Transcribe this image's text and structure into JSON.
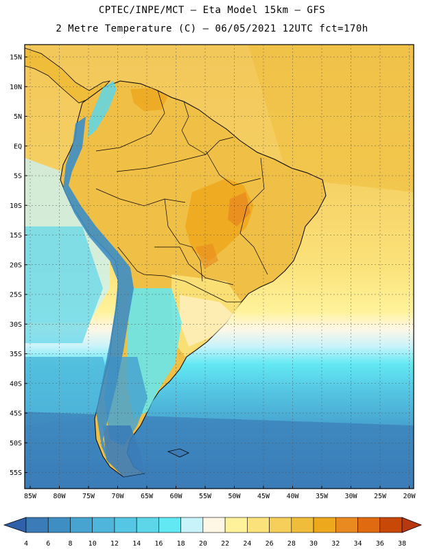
{
  "header": {
    "line1": "CPTEC/INPE/MCT –  Eta Model 15km – GFS",
    "line2": "2 Metre Temperature (C) – 06/05/2021 12UTC fct=170h"
  },
  "map": {
    "lat_labels": [
      "15N",
      "10N",
      "5N",
      "EQ",
      "5S",
      "10S",
      "15S",
      "20S",
      "25S",
      "30S",
      "35S",
      "40S",
      "45S",
      "50S",
      "55S"
    ],
    "lon_labels": [
      "85W",
      "80W",
      "75W",
      "70W",
      "65W",
      "60W",
      "55W",
      "50W",
      "45W",
      "40W",
      "35W",
      "30W",
      "25W",
      "20W"
    ]
  },
  "colorbar": {
    "ticks": [
      "4",
      "6",
      "8",
      "10",
      "12",
      "14",
      "16",
      "18",
      "20",
      "22",
      "24",
      "26",
      "28",
      "30",
      "32",
      "34",
      "36",
      "38"
    ],
    "colors": [
      "#3b7cb8",
      "#3e8ec4",
      "#47a3cf",
      "#4fb5da",
      "#55c6e3",
      "#5dd6ea",
      "#62e8f3",
      "#c8f3fb",
      "#fff7e6",
      "#fff29a",
      "#fbe27a",
      "#f5cf5a",
      "#efbd3a",
      "#eea81e",
      "#e88a20",
      "#e06a10",
      "#c84808"
    ],
    "low_color": "#3060a8",
    "high_color": "#b83810"
  }
}
